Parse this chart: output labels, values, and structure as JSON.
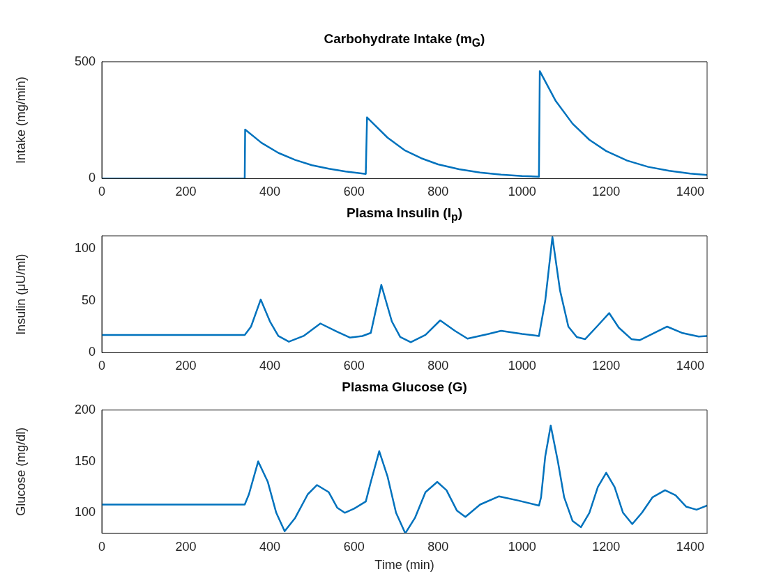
{
  "chart_data": [
    {
      "type": "line",
      "title": "Carbohydrate Intake (m$_{G}$)",
      "ylabel": "Intake (mg/min)",
      "xlim": [
        0,
        1440
      ],
      "xticks": [
        0,
        200,
        400,
        600,
        800,
        1000,
        1200,
        1400
      ],
      "ylim": [
        0,
        500
      ],
      "yticks": [
        0,
        500
      ],
      "grid": false,
      "legend": false,
      "marker": "none",
      "line_style": "solid",
      "series": [
        {
          "color": "#0072bd",
          "x": [
            0,
            340,
            341,
            380,
            420,
            460,
            500,
            540,
            580,
            628,
            631,
            680,
            720,
            760,
            800,
            850,
            900,
            950,
            1000,
            1040,
            1042,
            1080,
            1120,
            1160,
            1200,
            1250,
            1300,
            1350,
            1400,
            1440
          ],
          "values": [
            0,
            0,
            210,
            153,
            110,
            80,
            57,
            42,
            30,
            20,
            262,
            175,
            122,
            87,
            61,
            40,
            26,
            17,
            11,
            8,
            460,
            332,
            235,
            166,
            118,
            77,
            50,
            33,
            21,
            15
          ]
        }
      ]
    },
    {
      "type": "line",
      "title": "Plasma Insulin (I$_{p}$)",
      "ylabel": "Insulin (μU/ml)",
      "xlim": [
        0,
        1440
      ],
      "xticks": [
        0,
        200,
        400,
        600,
        800,
        1000,
        1200,
        1400
      ],
      "ylim": [
        0,
        112
      ],
      "yticks": [
        0,
        50,
        100
      ],
      "grid": false,
      "legend": false,
      "marker": "none",
      "line_style": "solid",
      "series": [
        {
          "color": "#0072bd",
          "x": [
            0,
            340,
            355,
            378,
            400,
            420,
            445,
            480,
            520,
            560,
            590,
            620,
            640,
            665,
            690,
            710,
            735,
            770,
            805,
            840,
            870,
            920,
            950,
            1000,
            1040,
            1055,
            1072,
            1090,
            1110,
            1130,
            1150,
            1180,
            1207,
            1230,
            1260,
            1280,
            1310,
            1345,
            1380,
            1420,
            1440
          ],
          "values": [
            17,
            17,
            25,
            51,
            30,
            16,
            10.5,
            16,
            28,
            20,
            14.5,
            16,
            19,
            65,
            30,
            15,
            10,
            17,
            31,
            21,
            13.5,
            18,
            21,
            18,
            16,
            50,
            111,
            60,
            25,
            15,
            13,
            26,
            38,
            24,
            13,
            12,
            18,
            25,
            19,
            15.5,
            16
          ]
        }
      ]
    },
    {
      "type": "line",
      "title": "Plasma Glucose (G)",
      "xlabel": "Time (min)",
      "ylabel": "Glucose (mg/dl)",
      "xlim": [
        0,
        1440
      ],
      "xticks": [
        0,
        200,
        400,
        600,
        800,
        1000,
        1200,
        1400
      ],
      "ylim": [
        80,
        200
      ],
      "yticks": [
        100,
        150,
        200
      ],
      "grid": false,
      "legend": false,
      "marker": "none",
      "line_style": "solid",
      "series": [
        {
          "color": "#0072bd",
          "x": [
            0,
            340,
            350,
            372,
            395,
            415,
            435,
            460,
            490,
            512,
            540,
            560,
            578,
            600,
            628,
            640,
            660,
            680,
            700,
            722,
            745,
            770,
            798,
            820,
            845,
            865,
            900,
            945,
            990,
            1040,
            1045,
            1055,
            1068,
            1085,
            1100,
            1120,
            1140,
            1160,
            1180,
            1200,
            1220,
            1240,
            1262,
            1285,
            1310,
            1340,
            1365,
            1390,
            1415,
            1440
          ],
          "values": [
            108,
            108,
            118,
            150,
            130,
            100,
            82,
            95,
            118,
            127,
            120,
            105,
            100,
            104,
            111,
            130,
            160,
            135,
            100,
            80,
            95,
            120,
            130,
            122,
            102,
            96,
            108,
            116,
            112,
            107,
            115,
            155,
            185,
            150,
            115,
            92,
            86,
            100,
            125,
            139,
            125,
            100,
            89,
            100,
            115,
            122,
            117,
            106,
            103,
            107
          ]
        }
      ]
    }
  ]
}
